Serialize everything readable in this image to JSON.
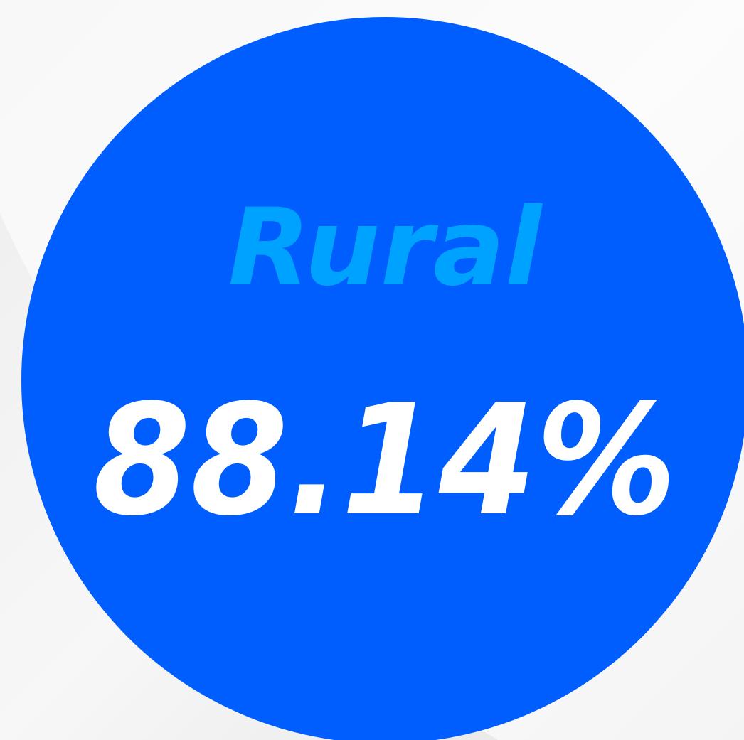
{
  "label": "Rural",
  "value": "88.14%"
}
